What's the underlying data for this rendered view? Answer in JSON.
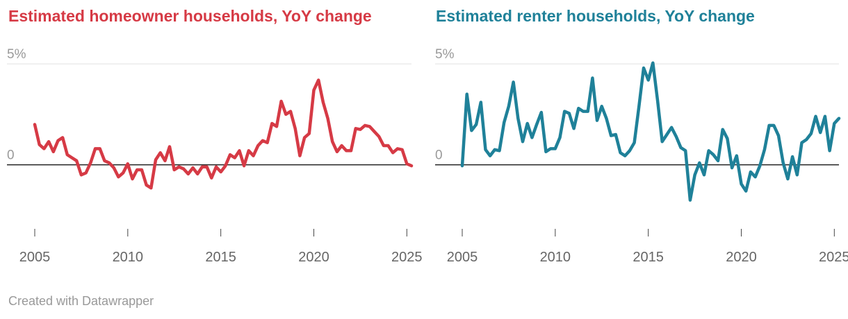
{
  "credit": "Created with Datawrapper",
  "chart_data": [
    {
      "type": "line",
      "title": "Estimated homeowner households, YoY change",
      "color": "#d63a45",
      "ylim": [
        -3.4,
        5.8
      ],
      "y_ticks": [
        {
          "value": 5,
          "label": "5%"
        },
        {
          "value": 0,
          "label": "0"
        }
      ],
      "x_ticks": [
        2005,
        2010,
        2015,
        2020,
        2025
      ],
      "grid": true,
      "series": [
        {
          "x": [
            2005,
            2005.25,
            2005.5,
            2005.75,
            2006,
            2006.25,
            2006.5,
            2006.75,
            2007,
            2007.25,
            2007.5,
            2007.75,
            2008,
            2008.25,
            2008.5,
            2008.75,
            2009,
            2009.25,
            2009.5,
            2009.75,
            2010,
            2010.25,
            2010.5,
            2010.75,
            2011,
            2011.25,
            2011.5,
            2011.75,
            2012,
            2012.25,
            2012.5,
            2012.75,
            2013,
            2013.25,
            2013.5,
            2013.75,
            2014,
            2014.25,
            2014.5,
            2014.75,
            2015,
            2015.25,
            2015.5,
            2015.75,
            2016,
            2016.25,
            2016.5,
            2016.75,
            2017,
            2017.25,
            2017.5,
            2017.75,
            2018,
            2018.25,
            2018.5,
            2018.75,
            2019,
            2019.25,
            2019.5,
            2019.75,
            2020,
            2020.25,
            2020.5,
            2020.75,
            2021,
            2021.25,
            2021.5,
            2021.75,
            2022,
            2022.25,
            2022.5,
            2022.75,
            2023,
            2023.25,
            2023.5,
            2023.75,
            2024,
            2024.25,
            2024.5,
            2024.75,
            2025,
            2025.25
          ],
          "values": [
            2.0,
            1.0,
            0.8,
            1.15,
            0.65,
            1.2,
            1.35,
            0.5,
            0.35,
            0.2,
            -0.5,
            -0.4,
            0.1,
            0.8,
            0.8,
            0.2,
            0.1,
            -0.15,
            -0.6,
            -0.4,
            0.05,
            -0.7,
            -0.25,
            -0.25,
            -1.0,
            -1.15,
            0.25,
            0.6,
            0.2,
            0.9,
            -0.25,
            -0.1,
            -0.2,
            -0.45,
            -0.15,
            -0.45,
            -0.1,
            -0.1,
            -0.65,
            -0.1,
            -0.35,
            -0.05,
            0.5,
            0.35,
            0.7,
            -0.05,
            0.7,
            0.45,
            0.95,
            1.2,
            1.1,
            2.05,
            1.9,
            3.15,
            2.5,
            2.65,
            1.8,
            0.45,
            1.35,
            1.55,
            3.7,
            4.2,
            3.1,
            2.3,
            1.15,
            0.65,
            0.95,
            0.7,
            0.7,
            1.8,
            1.75,
            1.95,
            1.9,
            1.65,
            1.4,
            0.95,
            0.95,
            0.6,
            0.8,
            0.75,
            0.05,
            -0.05
          ]
        }
      ]
    },
    {
      "type": "line",
      "title": "Estimated renter households, YoY change",
      "color": "#1f8199",
      "ylim": [
        -3.4,
        5.8
      ],
      "y_ticks": [
        {
          "value": 5,
          "label": "5%"
        },
        {
          "value": 0,
          "label": "0"
        }
      ],
      "x_ticks": [
        2005,
        2010,
        2015,
        2020,
        2025
      ],
      "grid": true,
      "series": [
        {
          "x": [
            2005,
            2005.25,
            2005.5,
            2005.75,
            2006,
            2006.25,
            2006.5,
            2006.75,
            2007,
            2007.25,
            2007.5,
            2007.75,
            2008,
            2008.25,
            2008.5,
            2008.75,
            2009,
            2009.25,
            2009.5,
            2009.75,
            2010,
            2010.25,
            2010.5,
            2010.75,
            2011,
            2011.25,
            2011.5,
            2011.75,
            2012,
            2012.25,
            2012.5,
            2012.75,
            2013,
            2013.25,
            2013.5,
            2013.75,
            2014,
            2014.25,
            2014.5,
            2014.75,
            2015,
            2015.25,
            2015.5,
            2015.75,
            2016,
            2016.25,
            2016.5,
            2016.75,
            2017,
            2017.25,
            2017.5,
            2017.75,
            2018,
            2018.25,
            2018.5,
            2018.75,
            2019,
            2019.25,
            2019.5,
            2019.75,
            2020,
            2020.25,
            2020.5,
            2020.75,
            2021,
            2021.25,
            2021.5,
            2021.75,
            2022,
            2022.25,
            2022.5,
            2022.75,
            2023,
            2023.25,
            2023.5,
            2023.75,
            2024,
            2024.25,
            2024.5,
            2024.75,
            2025,
            2025.25
          ],
          "values": [
            -0.05,
            3.5,
            1.7,
            2.0,
            3.1,
            0.75,
            0.45,
            0.75,
            0.7,
            2.1,
            2.9,
            4.1,
            2.3,
            1.15,
            2.05,
            1.35,
            2.0,
            2.6,
            0.65,
            0.8,
            0.8,
            1.35,
            2.65,
            2.55,
            1.8,
            2.8,
            2.65,
            2.65,
            4.3,
            2.2,
            2.9,
            2.3,
            1.45,
            1.5,
            0.6,
            0.45,
            0.7,
            1.1,
            2.9,
            4.8,
            4.2,
            5.05,
            3.2,
            1.15,
            1.5,
            1.85,
            1.4,
            0.85,
            0.7,
            -1.75,
            -0.5,
            0.1,
            -0.5,
            0.7,
            0.5,
            0.2,
            1.75,
            1.3,
            -0.15,
            0.45,
            -0.95,
            -1.3,
            -0.35,
            -0.6,
            -0.05,
            0.75,
            1.95,
            1.95,
            1.45,
            0.1,
            -0.7,
            0.4,
            -0.5,
            1.1,
            1.25,
            1.55,
            2.4,
            1.6,
            2.4,
            0.7,
            2.05,
            2.3
          ]
        }
      ]
    }
  ]
}
